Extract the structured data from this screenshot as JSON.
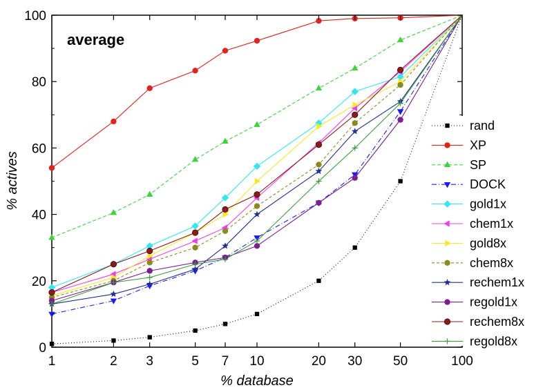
{
  "chart_data": {
    "type": "line",
    "annotation": "average",
    "xlabel": "% database",
    "ylabel": "% actives",
    "xscale": "log",
    "xlim": [
      1,
      100
    ],
    "ylim": [
      0,
      100
    ],
    "grid": false,
    "legend_position": "right",
    "x": [
      1,
      2,
      3,
      5,
      7,
      10,
      20,
      30,
      50,
      100
    ],
    "x_tick_labels": [
      "1",
      "2",
      "3",
      "5",
      "7",
      "10",
      "20",
      "30",
      "50",
      "100"
    ],
    "y_ticks": [
      0,
      20,
      40,
      60,
      80,
      100
    ],
    "y_tick_labels": [
      "0",
      "20",
      "40",
      "60",
      "80",
      "100"
    ],
    "series": [
      {
        "name": "rand",
        "color": "#000000",
        "dash": "1,3",
        "marker": "square",
        "values": [
          1,
          2,
          3,
          5,
          7,
          10,
          20,
          30,
          50,
          100
        ]
      },
      {
        "name": "XP",
        "color": "#e0231c",
        "dash": "",
        "marker": "circle",
        "values": [
          54,
          68,
          78,
          83.3,
          89.3,
          92.3,
          98.3,
          99,
          99.2,
          100
        ]
      },
      {
        "name": "SP",
        "color": "#3fd13f",
        "dash": "5,3",
        "marker": "triangle-up",
        "values": [
          33,
          40.5,
          46,
          56.5,
          62,
          67,
          78,
          84,
          92.5,
          100
        ]
      },
      {
        "name": "DOCK",
        "color": "#1a1aff",
        "dash": "7,3,1,3",
        "marker": "triangle-down",
        "values": [
          10,
          14,
          18.5,
          23,
          27,
          33,
          43.5,
          52,
          71,
          100
        ]
      },
      {
        "name": "gold1x",
        "color": "#33e6f0",
        "dash": "",
        "marker": "diamond",
        "values": [
          18,
          25,
          30.5,
          36.5,
          45,
          54.5,
          67.5,
          77,
          81.5,
          100
        ]
      },
      {
        "name": "chem1x",
        "color": "#f03cf0",
        "dash": "",
        "marker": "triangle-left",
        "values": [
          16.5,
          22,
          26.5,
          32,
          36,
          45,
          61.5,
          72,
          83,
          100
        ]
      },
      {
        "name": "gold8x",
        "color": "#f5e82a",
        "dash": "",
        "marker": "triangle-right",
        "values": [
          15.5,
          21,
          27.5,
          34.5,
          40,
          50,
          66.5,
          73,
          80,
          100
        ]
      },
      {
        "name": "chem8x",
        "color": "#8a8a1e",
        "dash": "4,3",
        "marker": "circle",
        "values": [
          15,
          20,
          25.5,
          30,
          35,
          42.5,
          55,
          67.5,
          79,
          100
        ]
      },
      {
        "name": "rechem1x",
        "color": "#1f2f8c",
        "dash": "",
        "marker": "star",
        "values": [
          13,
          16,
          19,
          23.5,
          30.5,
          40,
          53,
          65,
          74,
          100
        ]
      },
      {
        "name": "regold1x",
        "color": "#7a1f8c",
        "dash": "",
        "marker": "circle",
        "values": [
          14,
          19.5,
          23,
          25.5,
          27,
          30.5,
          43.5,
          51,
          68.5,
          100
        ]
      },
      {
        "name": "rechem8x",
        "color": "#8c1a1a",
        "dash": "",
        "marker": "circle-half",
        "values": [
          16.5,
          25,
          29,
          34.5,
          41.5,
          46,
          61,
          70,
          83.5,
          100
        ]
      },
      {
        "name": "regold8x",
        "color": "#3a9e3a",
        "dash": "",
        "marker": "plus",
        "values": [
          13,
          19.5,
          21,
          25,
          26.5,
          32,
          50,
          60,
          73.5,
          100
        ]
      }
    ]
  }
}
